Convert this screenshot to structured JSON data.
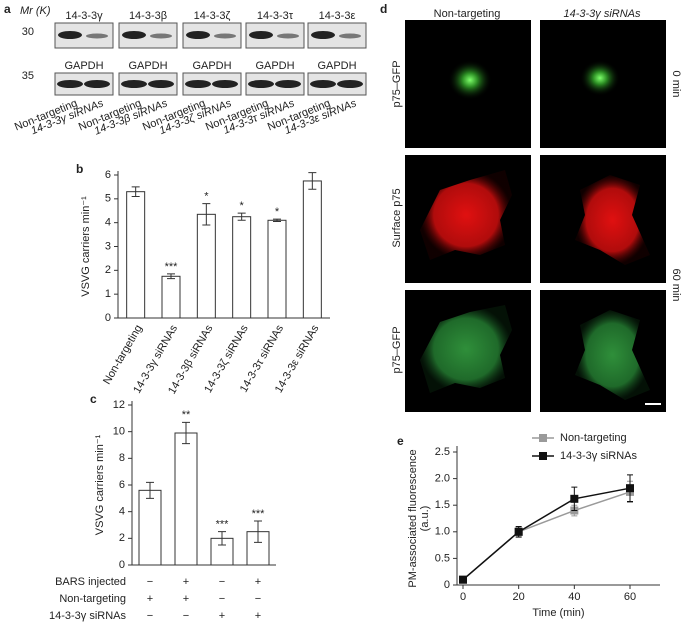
{
  "blots": {
    "panel_label": "a",
    "mw_label": "Mr (K)",
    "markers": [
      30,
      35
    ],
    "proteins": [
      "14-3-3γ",
      "14-3-3β",
      "14-3-3ζ",
      "14-3-3τ",
      "14-3-3ε"
    ],
    "loading_labels": [
      "GAPDH",
      "GAPDH",
      "GAPDH",
      "GAPDH",
      "GAPDH"
    ],
    "lanes": [
      [
        "Non-targeting",
        "14-3-3γ siRNAs"
      ],
      [
        "Non-targeting",
        "14-3-3β siRNAs"
      ],
      [
        "Non-targeting",
        "14-3-3ζ siRNAs"
      ],
      [
        "Non-targeting",
        "14-3-3τ siRNAs"
      ],
      [
        "Non-targeting",
        "14-3-3ε siRNAs"
      ]
    ]
  },
  "images": {
    "panel_label": "d",
    "columns": [
      "Non-targeting",
      "14-3-3γ siRNAs"
    ],
    "rows": [
      "p75–GFP",
      "Surface p75",
      "p75–GFP"
    ],
    "time_labels": [
      "0 min",
      "60 min"
    ]
  },
  "chart_data": [
    {
      "type": "bar",
      "panel_label": "b",
      "ylabel": "VSVG carriers min⁻¹",
      "categories": [
        "Non-targeting",
        "14-3-3γ siRNAs",
        "14-3-3β siRNAs",
        "14-3-3ζ siRNAs",
        "14-3-3τ siRNAs",
        "14-3-3ε siRNAs"
      ],
      "values": [
        5.3,
        1.75,
        4.35,
        4.25,
        4.1,
        5.75
      ],
      "errors": [
        0.2,
        0.1,
        0.45,
        0.15,
        0.05,
        0.35
      ],
      "significance": [
        null,
        "***",
        "*",
        "*",
        "*",
        null
      ],
      "color": "#ffffff",
      "ylim": [
        0,
        6
      ],
      "yticks": [
        0,
        1,
        2,
        3,
        4,
        5,
        6
      ]
    },
    {
      "type": "bar",
      "panel_label": "c",
      "ylabel": "VSVG carriers min⁻¹",
      "values": [
        5.6,
        9.9,
        2.0,
        2.5
      ],
      "errors": [
        0.6,
        0.8,
        0.5,
        0.8
      ],
      "significance": [
        null,
        "**",
        "***",
        "***"
      ],
      "conditions": [
        {
          "name": "BARS injected",
          "values": [
            "−",
            "+",
            "−",
            "+"
          ]
        },
        {
          "name": "Non-targeting",
          "values": [
            "+",
            "+",
            "−",
            "−"
          ]
        },
        {
          "name": "14-3-3γ siRNAs",
          "values": [
            "−",
            "−",
            "+",
            "+"
          ]
        }
      ],
      "color": "#ffffff",
      "ylim": [
        0,
        12
      ],
      "yticks": [
        0,
        2,
        4,
        6,
        8,
        10,
        12
      ]
    },
    {
      "type": "line",
      "panel_label": "e",
      "xlabel": "Time (min)",
      "ylabel": [
        "PM-associated fluorescence",
        "(a.u.)"
      ],
      "x": [
        0,
        20,
        40,
        60
      ],
      "series": [
        {
          "name": "Non-targeting",
          "color": "#9a9a9a",
          "values": [
            0.1,
            1.0,
            1.4,
            1.75
          ],
          "errors": [
            0.05,
            0.08,
            0.1,
            0.2
          ]
        },
        {
          "name": "14-3-3γ siRNAs",
          "color": "#111111",
          "values": [
            0.1,
            1.0,
            1.62,
            1.82
          ],
          "errors": [
            0.05,
            0.1,
            0.22,
            0.25
          ]
        }
      ],
      "xlim": [
        0,
        60
      ],
      "xticks": [
        0,
        20,
        40,
        60
      ],
      "ylim": [
        0,
        2.5
      ],
      "yticks": [
        0,
        0.5,
        {
          "value": 1,
          "label": "1.0"
        },
        1.5,
        {
          "value": 2,
          "label": "2.0"
        },
        2.5
      ],
      "legend": "top"
    }
  ]
}
